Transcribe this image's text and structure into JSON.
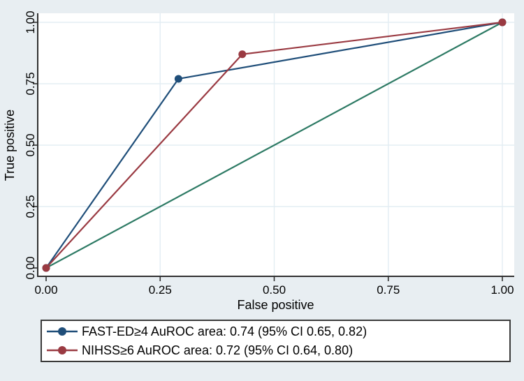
{
  "chart_data": {
    "type": "line",
    "title": "",
    "xlabel": "False positive",
    "ylabel": "True positive",
    "xlim": [
      0,
      1
    ],
    "ylim": [
      0,
      1
    ],
    "grid": true,
    "legend_position": "bottom",
    "ticks": {
      "values": [
        0,
        0.25,
        0.5,
        0.75,
        1
      ],
      "labels": [
        "0.00",
        "0.25",
        "0.50",
        "0.75",
        "1.00"
      ]
    },
    "gridline_values": [
      0.25,
      0.5,
      0.75,
      1
    ],
    "series": [
      {
        "name": "fast-ed",
        "label": "FAST-ED≥4 AuROC area: 0.74 (95% CI 0.65, 0.82)",
        "color": "#1f4e79",
        "markers": true,
        "z": 1,
        "x": [
          0,
          0.29,
          1
        ],
        "y": [
          0,
          0.77,
          1
        ]
      },
      {
        "name": "nihss",
        "label": "NIHSS≥6 AuROC area: 0.72 (95% CI 0.64, 0.80)",
        "color": "#9a3a42",
        "markers": true,
        "z": 2,
        "x": [
          0,
          0.43,
          1
        ],
        "y": [
          0,
          0.87,
          1
        ]
      },
      {
        "name": "reference-diagonal",
        "label": "",
        "color": "#2d7a64",
        "markers": false,
        "z": 0,
        "x": [
          0,
          1
        ],
        "y": [
          0,
          1
        ]
      }
    ],
    "colors": {
      "background": "#e8eef2",
      "plot_background": "#ffffff",
      "gridline": "#e3edf3",
      "axis": "#303030",
      "text": "#000000",
      "legend_border": "#3a3a3a"
    }
  }
}
